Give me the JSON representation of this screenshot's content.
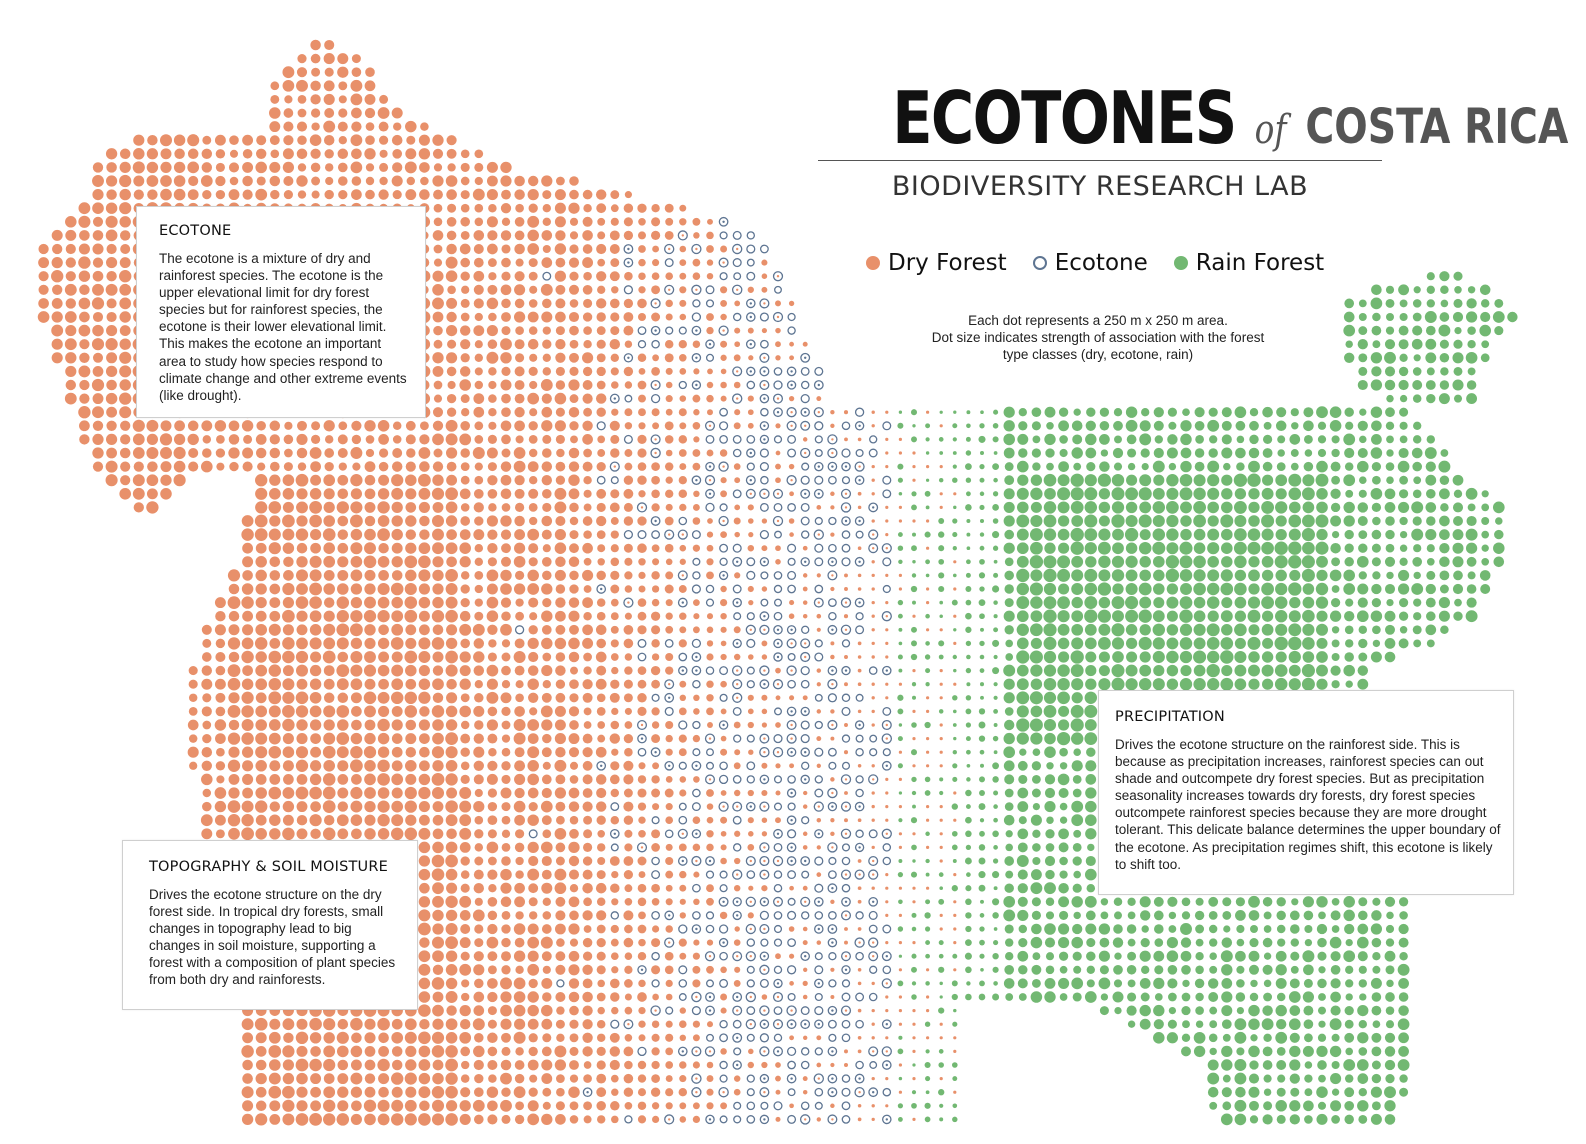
{
  "title": {
    "main": "ECOTONES",
    "connector": "of",
    "country": "COSTA RICA",
    "subtitle": "BIODIVERSITY RESEARCH LAB"
  },
  "legend": [
    {
      "label": "Dry Forest",
      "color": "#e8906a",
      "style": "filled"
    },
    {
      "label": "Ecotone",
      "color": "#5e7592",
      "style": "ring"
    },
    {
      "label": "Rain Forest",
      "color": "#72b872",
      "style": "filled"
    }
  ],
  "note": {
    "line1": "Each dot represents a 250 m x 250 m area.",
    "line2": "Dot size indicates strength of association with the forest type classes (dry, ecotone, rain)"
  },
  "callouts": {
    "ecotone": {
      "heading": "ECOTONE",
      "body": "The ecotone is a mixture of dry and rainforest species. The ecotone is the upper elevational limit for dry forest species but for rainforest species, the ecotone is their lower elevational limit. This makes the ecotone an important area to study how species respond to climate change and other extreme events (like drought)."
    },
    "topography": {
      "heading": "TOPOGRAPHY & SOIL MOISTURE",
      "body": "Drives the ecotone structure on the dry forest side. In tropical dry forests, small changes in topography lead to big changes in soil moisture, supporting a forest with a composition of plant species from both dry and rainforests."
    },
    "precipitation": {
      "heading": "PRECIPITATION",
      "body": "Drives the ecotone structure on the rainforest side. This is because as precipitation increases, rainforest species can out shade and outcompete dry forest species. But as precipitation seasonality increases towards dry forests, dry forest species outcompete rainforest species because they are more drought tolerant. This delicate balance determines the upper boundary of the ecotone. As precipitation regimes shift, this ecotone is likely to shift too."
    }
  },
  "colors": {
    "dry_forest": "#e8906a",
    "ecotone": "#5e7592",
    "rain_forest": "#72b872"
  }
}
